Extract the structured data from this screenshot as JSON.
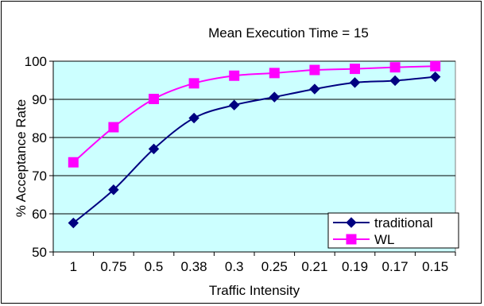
{
  "chart_data": {
    "type": "line",
    "title": "Mean Execution Time = 15",
    "xlabel": "Traffic Intensity",
    "ylabel": "% Acceptance Rate",
    "categories": [
      "1",
      "0.75",
      "0.5",
      "0.38",
      "0.3",
      "0.25",
      "0.21",
      "0.19",
      "0.17",
      "0.15"
    ],
    "ylim": [
      50,
      100
    ],
    "yticks": [
      50,
      60,
      70,
      80,
      90,
      100
    ],
    "grid": true,
    "legend_position": "bottom-right",
    "plot_background": "#CCFFFF",
    "series": [
      {
        "name": "traditional",
        "color": "#000080",
        "marker": "diamond",
        "values": [
          57.6,
          66.3,
          77.0,
          85.1,
          88.5,
          90.6,
          92.7,
          94.4,
          94.9,
          95.9
        ]
      },
      {
        "name": "WL",
        "color": "#FF00FF",
        "marker": "square",
        "values": [
          73.5,
          82.7,
          90.1,
          94.2,
          96.2,
          96.9,
          97.7,
          98.0,
          98.4,
          98.7
        ]
      }
    ]
  }
}
